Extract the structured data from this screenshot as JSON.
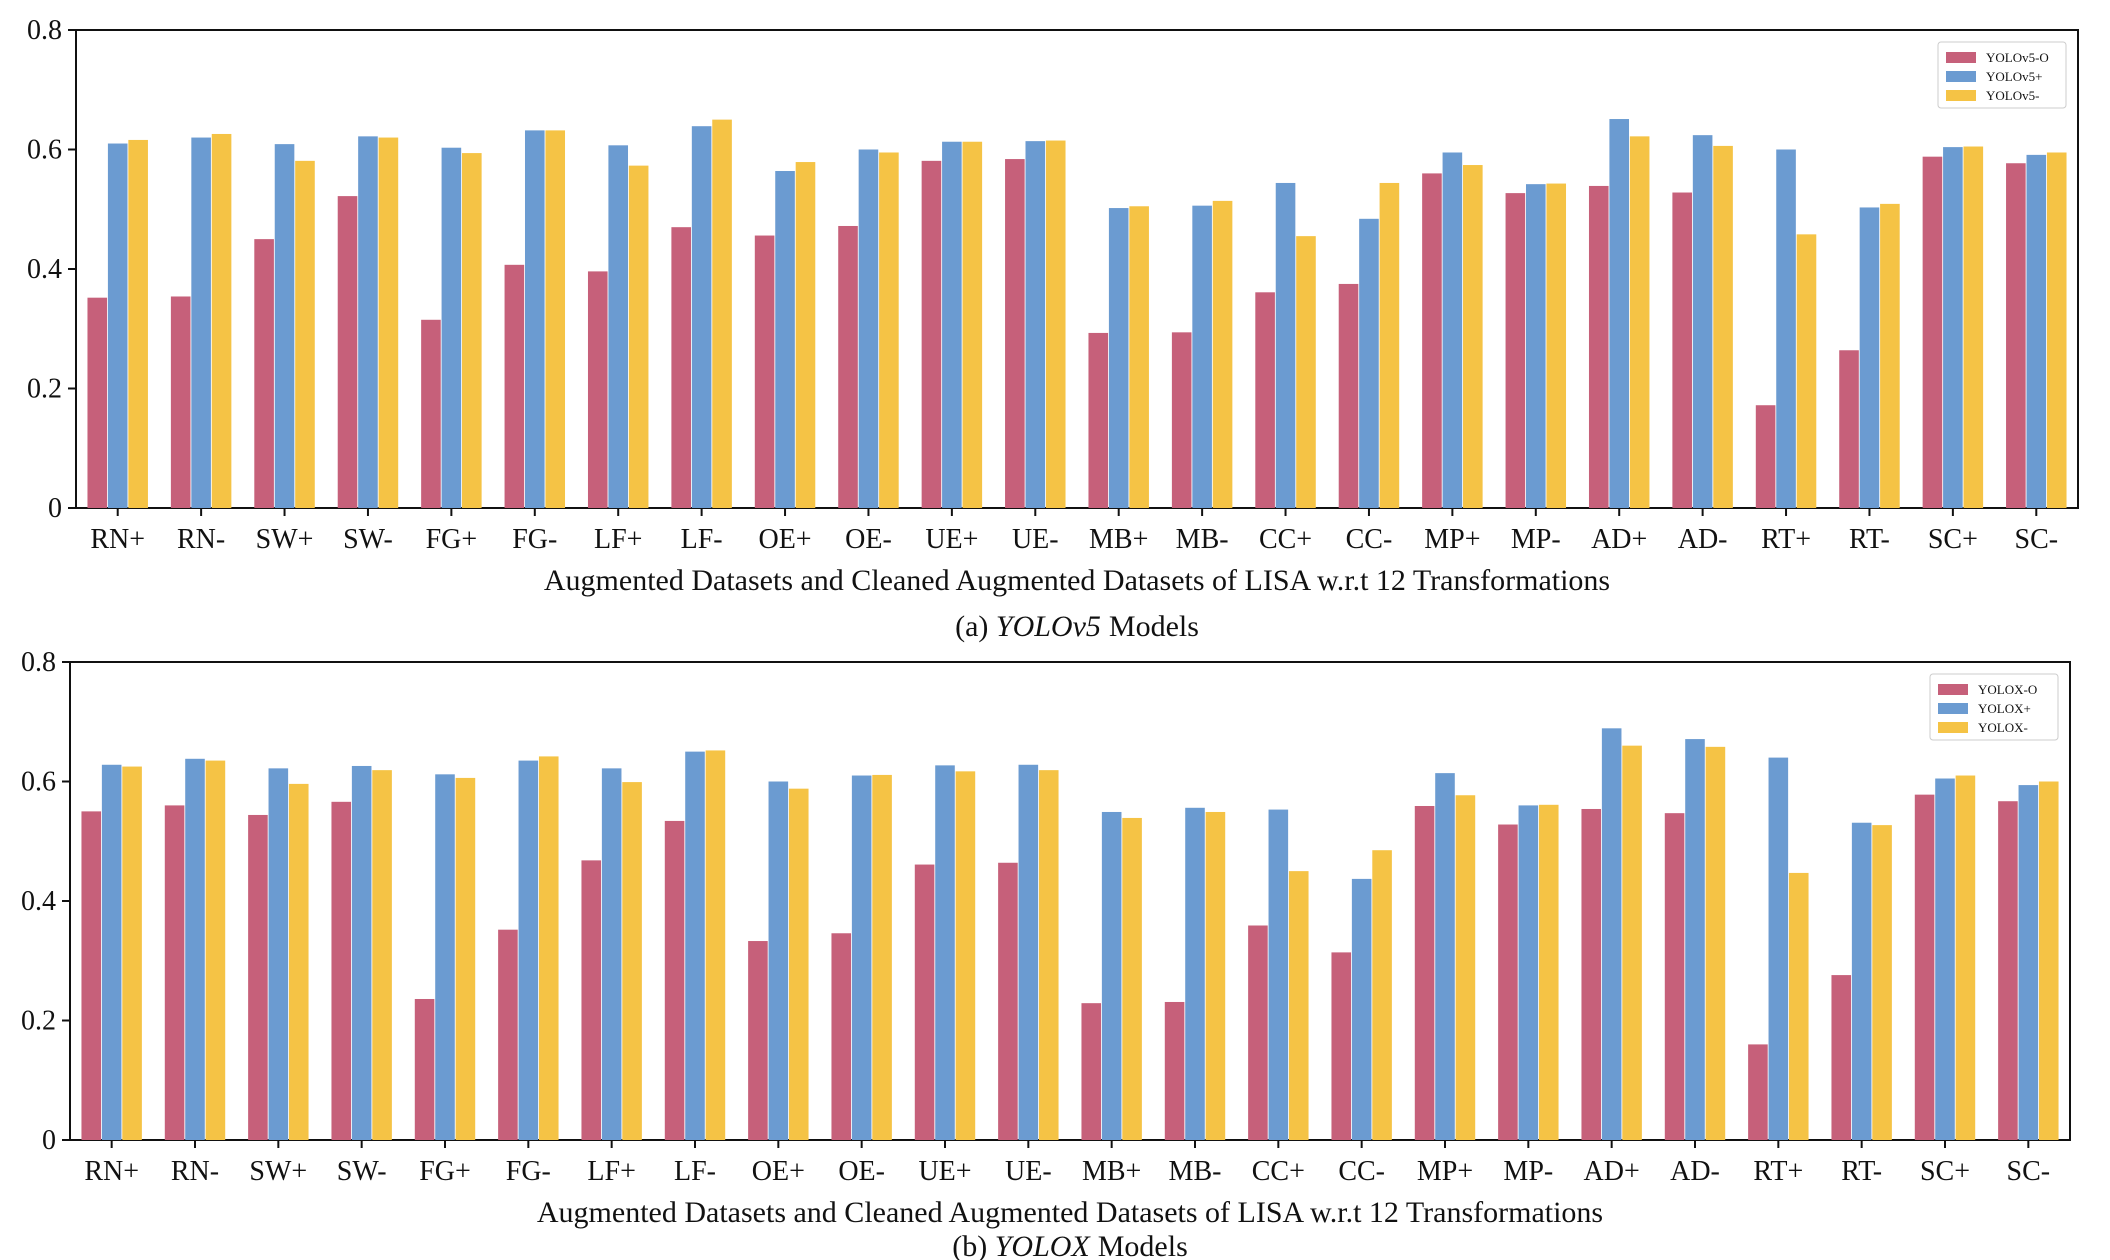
{
  "figure": {
    "panels": [
      {
        "caption_prefix": "(a)",
        "caption_model": "YOLOv5",
        "caption_suffix": "Models"
      },
      {
        "caption_prefix": "(b)",
        "caption_model": "YOLOX",
        "caption_suffix": "Models"
      }
    ]
  },
  "chart_data": [
    {
      "type": "bar",
      "title": "",
      "xlabel": "Augmented Datasets and Cleaned Augmented Datasets of LISA w.r.t 12 Transformations",
      "ylabel": "",
      "ylim": [
        0,
        0.8
      ],
      "yticks": [
        "0",
        "0.2",
        "0.4",
        "0.6",
        "0.8"
      ],
      "legend_position": "top-right",
      "grid": false,
      "categories": [
        "RN+",
        "RN-",
        "SW+",
        "SW-",
        "FG+",
        "FG-",
        "LF+",
        "LF-",
        "OE+",
        "OE-",
        "UE+",
        "UE-",
        "MB+",
        "MB-",
        "CC+",
        "CC-",
        "MP+",
        "MP-",
        "AD+",
        "AD-",
        "RT+",
        "RT-",
        "SC+",
        "SC-"
      ],
      "series": [
        {
          "name": "YOLOv5-O",
          "color": "#c6607a",
          "values": [
            0.352,
            0.354,
            0.45,
            0.522,
            0.315,
            0.407,
            0.396,
            0.47,
            0.456,
            0.472,
            0.581,
            0.584,
            0.293,
            0.294,
            0.361,
            0.375,
            0.56,
            0.527,
            0.539,
            0.528,
            0.172,
            0.264,
            0.588,
            0.577
          ]
        },
        {
          "name": "YOLOv5+",
          "color": "#6b9bd1",
          "values": [
            0.61,
            0.62,
            0.609,
            0.622,
            0.603,
            0.632,
            0.607,
            0.639,
            0.564,
            0.6,
            0.613,
            0.614,
            0.502,
            0.506,
            0.544,
            0.484,
            0.595,
            0.542,
            0.651,
            0.624,
            0.6,
            0.503,
            0.604,
            0.591
          ]
        },
        {
          "name": "YOLOv5-",
          "color": "#f5c345",
          "values": [
            0.616,
            0.626,
            0.581,
            0.62,
            0.594,
            0.632,
            0.573,
            0.65,
            0.579,
            0.595,
            0.613,
            0.615,
            0.505,
            0.514,
            0.455,
            0.544,
            0.574,
            0.543,
            0.622,
            0.606,
            0.458,
            0.509,
            0.605,
            0.595
          ]
        }
      ]
    },
    {
      "type": "bar",
      "title": "",
      "xlabel": "Augmented Datasets and Cleaned Augmented Datasets of LISA w.r.t 12 Transformations",
      "ylabel": "",
      "ylim": [
        0,
        0.8
      ],
      "yticks": [
        "0",
        "0.2",
        "0.4",
        "0.6",
        "0.8"
      ],
      "legend_position": "top-right",
      "grid": false,
      "categories": [
        "RN+",
        "RN-",
        "SW+",
        "SW-",
        "FG+",
        "FG-",
        "LF+",
        "LF-",
        "OE+",
        "OE-",
        "UE+",
        "UE-",
        "MB+",
        "MB-",
        "CC+",
        "CC-",
        "MP+",
        "MP-",
        "AD+",
        "AD-",
        "RT+",
        "RT-",
        "SC+",
        "SC-"
      ],
      "series": [
        {
          "name": "YOLOX-O",
          "color": "#c6607a",
          "values": [
            0.55,
            0.56,
            0.544,
            0.566,
            0.236,
            0.352,
            0.468,
            0.534,
            0.333,
            0.346,
            0.461,
            0.464,
            0.229,
            0.231,
            0.359,
            0.314,
            0.559,
            0.528,
            0.554,
            0.547,
            0.16,
            0.276,
            0.578,
            0.567
          ]
        },
        {
          "name": "YOLOX+",
          "color": "#6b9bd1",
          "values": [
            0.628,
            0.638,
            0.622,
            0.626,
            0.612,
            0.635,
            0.622,
            0.65,
            0.6,
            0.61,
            0.627,
            0.628,
            0.549,
            0.556,
            0.553,
            0.437,
            0.614,
            0.56,
            0.689,
            0.671,
            0.64,
            0.531,
            0.605,
            0.594
          ]
        },
        {
          "name": "YOLOX-",
          "color": "#f5c345",
          "values": [
            0.625,
            0.635,
            0.596,
            0.619,
            0.606,
            0.642,
            0.599,
            0.652,
            0.588,
            0.611,
            0.617,
            0.619,
            0.539,
            0.549,
            0.45,
            0.485,
            0.577,
            0.561,
            0.66,
            0.658,
            0.447,
            0.527,
            0.61,
            0.6
          ]
        }
      ]
    }
  ]
}
